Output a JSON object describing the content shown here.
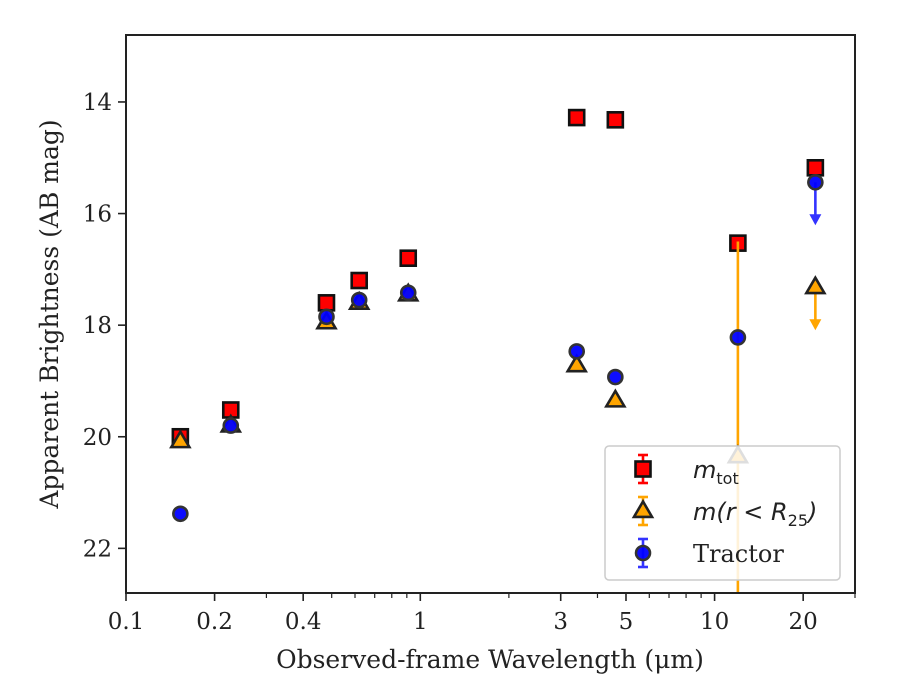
{
  "chart_data": {
    "type": "scatter",
    "xlabel": "Observed-frame Wavelength (μm)",
    "ylabel": "Apparent Brightness (AB mag)",
    "x_scale": "log",
    "xlim": [
      0.1,
      30
    ],
    "ylim": [
      22.8,
      12.8
    ],
    "y_inverted": true,
    "x_ticks": [
      {
        "value": 0.1,
        "label": "0.1"
      },
      {
        "value": 0.2,
        "label": "0.2"
      },
      {
        "value": 0.4,
        "label": "0.4"
      },
      {
        "value": 1,
        "label": "1"
      },
      {
        "value": 3,
        "label": "3"
      },
      {
        "value": 5,
        "label": "5"
      },
      {
        "value": 10,
        "label": "10"
      },
      {
        "value": 20,
        "label": "20"
      }
    ],
    "y_ticks": [
      {
        "value": 14,
        "label": "14"
      },
      {
        "value": 16,
        "label": "16"
      },
      {
        "value": 18,
        "label": "18"
      },
      {
        "value": 20,
        "label": "20"
      },
      {
        "value": 22,
        "label": "22"
      }
    ],
    "grid": false,
    "legend_position": "lower-right",
    "series": [
      {
        "name": "m_tot",
        "label_main": "m",
        "label_sub": "tot",
        "marker": "square",
        "color": "#ff0000",
        "edge_color": "#111111",
        "err_color": "#ff0000",
        "points": [
          {
            "x": 0.153,
            "y": 20.0
          },
          {
            "x": 0.227,
            "y": 19.52
          },
          {
            "x": 0.48,
            "y": 17.6
          },
          {
            "x": 0.62,
            "y": 17.2
          },
          {
            "x": 0.91,
            "y": 16.8
          },
          {
            "x": 3.4,
            "y": 14.28
          },
          {
            "x": 4.6,
            "y": 14.32
          },
          {
            "x": 12.0,
            "y": 16.53
          },
          {
            "x": 22.0,
            "y": 15.18
          }
        ]
      },
      {
        "name": "m(r < R25)",
        "label_main": "m(r < R",
        "label_sub": "25",
        "label_end": ")",
        "marker": "triangle",
        "color": "#ffa500",
        "edge_color": "#222222",
        "err_color": "#ffa500",
        "points": [
          {
            "x": 0.153,
            "y": 20.08
          },
          {
            "x": 0.227,
            "y": 19.8
          },
          {
            "x": 0.48,
            "y": 17.95
          },
          {
            "x": 0.62,
            "y": 17.6
          },
          {
            "x": 0.91,
            "y": 17.45
          },
          {
            "x": 3.4,
            "y": 18.72
          },
          {
            "x": 4.6,
            "y": 19.35
          },
          {
            "x": 12.0,
            "y": 20.35,
            "err_low": 16.5,
            "err_high": 22.8
          },
          {
            "x": 22.0,
            "y": 17.32,
            "upper_limit": true
          }
        ]
      },
      {
        "name": "Tractor",
        "label_main": "Tractor",
        "marker": "circle",
        "color": "#0000ff",
        "edge_color": "#333333",
        "err_color": "#3333ff",
        "points": [
          {
            "x": 0.153,
            "y": 21.38
          },
          {
            "x": 0.227,
            "y": 19.8
          },
          {
            "x": 0.48,
            "y": 17.85
          },
          {
            "x": 0.62,
            "y": 17.55
          },
          {
            "x": 0.91,
            "y": 17.42
          },
          {
            "x": 3.4,
            "y": 18.47
          },
          {
            "x": 4.6,
            "y": 18.93
          },
          {
            "x": 12.0,
            "y": 18.22
          },
          {
            "x": 22.0,
            "y": 15.44,
            "upper_limit": true
          }
        ]
      }
    ]
  }
}
